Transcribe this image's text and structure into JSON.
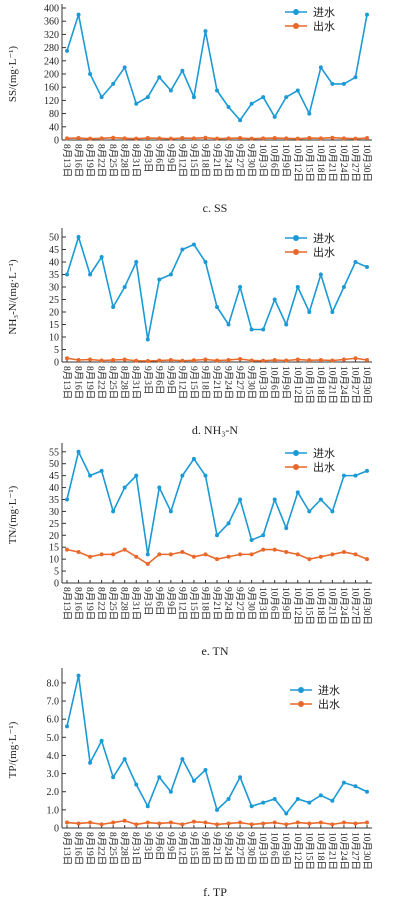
{
  "chart_data": [
    {
      "type": "line",
      "caption": "c. SS",
      "y_label": "SS/(mg·L⁻¹)",
      "categories": [
        "8月13日",
        "8月16日",
        "8月19日",
        "8月22日",
        "8月25日",
        "8月28日",
        "8月31日",
        "9月3日",
        "9月6日",
        "9月9日",
        "9月12日",
        "9月15日",
        "9月18日",
        "9月21日",
        "9月24日",
        "9月27日",
        "9月30日",
        "10月3日",
        "10月6日",
        "10月9日",
        "10月12日",
        "10月15日",
        "10月18日",
        "10月21日",
        "10月24日",
        "10月27日",
        "10月30日"
      ],
      "series": [
        {
          "name": "进水",
          "color": "#1c9ad6",
          "values": [
            270,
            380,
            200,
            130,
            170,
            220,
            110,
            130,
            190,
            150,
            210,
            130,
            330,
            150,
            100,
            60,
            110,
            130,
            70,
            130,
            150,
            80,
            220,
            170,
            170,
            190,
            380
          ]
        },
        {
          "name": "出水",
          "color": "#e8692a",
          "values": [
            5,
            6,
            4,
            5,
            7,
            5,
            4,
            6,
            5,
            4,
            6,
            5,
            7,
            4,
            5,
            6,
            4,
            5,
            6,
            5,
            4,
            6,
            5,
            7,
            5,
            4,
            6
          ]
        }
      ],
      "ylim": [
        0,
        400
      ],
      "yticks": [
        0,
        40,
        80,
        120,
        160,
        200,
        240,
        280,
        320,
        360,
        400
      ]
    },
    {
      "type": "line",
      "caption": "d. NH₃-N",
      "y_label": "NH₃-N/(mg·L⁻¹)",
      "categories": [
        "8月13日",
        "8月16日",
        "8月19日",
        "8月22日",
        "8月25日",
        "8月28日",
        "8月31日",
        "9月3日",
        "9月6日",
        "9月9日",
        "9月12日",
        "9月15日",
        "9月18日",
        "9月21日",
        "9月24日",
        "9月27日",
        "9月30日",
        "10月3日",
        "10月6日",
        "10月9日",
        "10月12日",
        "10月15日",
        "10月18日",
        "10月21日",
        "10月24日",
        "10月27日",
        "10月30日"
      ],
      "series": [
        {
          "name": "进水",
          "color": "#1c9ad6",
          "values": [
            35,
            50,
            35,
            42,
            22,
            30,
            40,
            9,
            33,
            35,
            45,
            47,
            40,
            22,
            15,
            30,
            13,
            13,
            25,
            15,
            30,
            20,
            35,
            20,
            30,
            40,
            38
          ]
        },
        {
          "name": "出水",
          "color": "#e8692a",
          "values": [
            1.5,
            0.8,
            1,
            0.6,
            0.8,
            1,
            0.5,
            0.4,
            0.6,
            0.8,
            0.5,
            0.7,
            1,
            0.6,
            0.8,
            1.2,
            0.6,
            0.5,
            0.8,
            0.6,
            1,
            0.7,
            0.8,
            0.6,
            1,
            1.5,
            0.8
          ]
        }
      ],
      "ylim": [
        0,
        52
      ],
      "yticks": [
        0,
        5,
        10,
        15,
        20,
        25,
        30,
        35,
        40,
        45,
        50
      ]
    },
    {
      "type": "line",
      "caption": "e. TN",
      "y_label": "TN/(mg·L⁻¹)",
      "categories": [
        "8月13日",
        "8月16日",
        "8月19日",
        "8月22日",
        "8月25日",
        "8月28日",
        "8月31日",
        "9月3日",
        "9月6日",
        "9月9日",
        "9月12日",
        "9月15日",
        "9月18日",
        "9月21日",
        "9月24日",
        "9月27日",
        "9月30日",
        "10月3日",
        "10月6日",
        "10月9日",
        "10月12日",
        "10月15日",
        "10月18日",
        "10月21日",
        "10月24日",
        "10月27日",
        "10月30日"
      ],
      "series": [
        {
          "name": "进水",
          "color": "#1c9ad6",
          "values": [
            35,
            55,
            45,
            47,
            30,
            40,
            45,
            12,
            40,
            30,
            45,
            52,
            45,
            20,
            25,
            35,
            18,
            20,
            35,
            23,
            38,
            30,
            35,
            30,
            45,
            45,
            47
          ]
        },
        {
          "name": "出水",
          "color": "#e8692a",
          "values": [
            14,
            13,
            11,
            12,
            12,
            14,
            11,
            8,
            12,
            12,
            13,
            11,
            12,
            10,
            11,
            12,
            12,
            14,
            14,
            13,
            12,
            10,
            11,
            12,
            13,
            12,
            10
          ]
        }
      ],
      "ylim": [
        0,
        57
      ],
      "yticks": [
        0,
        5,
        10,
        15,
        20,
        25,
        30,
        35,
        40,
        45,
        50,
        55
      ]
    },
    {
      "type": "line",
      "caption": "f. TP",
      "y_label": "TP/(mg·L⁻¹)",
      "categories": [
        "8月13日",
        "8月16日",
        "8月19日",
        "8月22日",
        "8月25日",
        "8月28日",
        "8月31日",
        "9月3日",
        "9月6日",
        "9月9日",
        "9月12日",
        "9月15日",
        "9月18日",
        "9月21日",
        "9月24日",
        "9月27日",
        "9月30日",
        "10月3日",
        "10月6日",
        "10月9日",
        "10月12日",
        "10月15日",
        "10月18日",
        "10月21日",
        "10月24日",
        "10月27日",
        "10月30日"
      ],
      "series": [
        {
          "name": "进水",
          "color": "#1c9ad6",
          "values": [
            5.6,
            8.4,
            3.6,
            4.8,
            2.8,
            3.8,
            2.4,
            1.2,
            2.8,
            2.0,
            3.8,
            2.6,
            3.2,
            1.0,
            1.6,
            2.8,
            1.2,
            1.4,
            1.6,
            0.8,
            1.6,
            1.4,
            1.8,
            1.5,
            2.5,
            2.3,
            2.0
          ]
        },
        {
          "name": "出水",
          "color": "#e8692a",
          "values": [
            0.3,
            0.25,
            0.3,
            0.2,
            0.3,
            0.4,
            0.2,
            0.3,
            0.25,
            0.3,
            0.2,
            0.35,
            0.3,
            0.2,
            0.25,
            0.3,
            0.2,
            0.25,
            0.3,
            0.2,
            0.3,
            0.25,
            0.3,
            0.2,
            0.3,
            0.25,
            0.3
          ]
        }
      ],
      "ylim": [
        0,
        8.6
      ],
      "yticks": [
        0,
        {
          "value": 1,
          "label": "1.0"
        },
        {
          "value": 2,
          "label": "2.0"
        },
        {
          "value": 3,
          "label": "3.0"
        },
        {
          "value": 4,
          "label": "4.0"
        },
        {
          "value": 5,
          "label": "5.0"
        },
        {
          "value": 6,
          "label": "6.0"
        },
        {
          "value": 7,
          "label": "7.0"
        },
        {
          "value": 8,
          "label": "8.0"
        }
      ]
    }
  ]
}
